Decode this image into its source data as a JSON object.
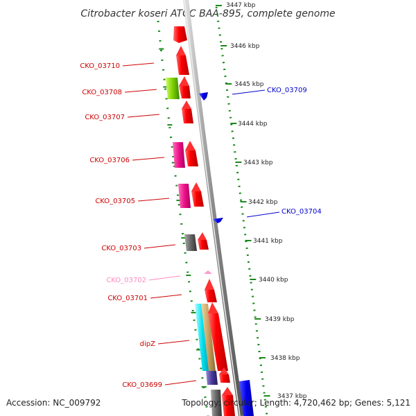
{
  "title": "Citrobacter koseri ATCC BAA-895, complete genome",
  "accession": "Accession: NC_009792",
  "topology": "Topology: circular; Length: 4,720,462 bp; Genes: 5,121",
  "colors": {
    "backbone": "#8a8a8a",
    "ticks": "#1a8a1a",
    "cds_forward": "#ee0000",
    "cds_reverse": "#0000dd",
    "trna": "#ff99cc"
  },
  "kbp_labels": [
    "3447 kbp",
    "3446 kbp",
    "3445 kbp",
    "3444 kbp",
    "3443 kbp",
    "3442 kbp",
    "3441 kbp",
    "3440 kbp",
    "3439 kbp",
    "3438 kbp",
    "3437 kbp"
  ],
  "left_genes": [
    {
      "label": "CKO_03710",
      "color": "#cc0000"
    },
    {
      "label": "CKO_03708",
      "color": "#cc0000"
    },
    {
      "label": "CKO_03707",
      "color": "#cc0000"
    },
    {
      "label": "CKO_03706",
      "color": "#cc0000"
    },
    {
      "label": "CKO_03705",
      "color": "#cc0000"
    },
    {
      "label": "CKO_03703",
      "color": "#cc0000"
    },
    {
      "label": "CKO_03702",
      "color": "#ff88bb"
    },
    {
      "label": "CKO_03701",
      "color": "#cc0000"
    },
    {
      "label": "dipZ",
      "color": "#cc0000"
    },
    {
      "label": "CKO_03699",
      "color": "#cc0000"
    }
  ],
  "right_genes": [
    {
      "label": "CKO_03709",
      "color": "#0000cc"
    },
    {
      "label": "CKO_03704",
      "color": "#0000cc"
    }
  ]
}
